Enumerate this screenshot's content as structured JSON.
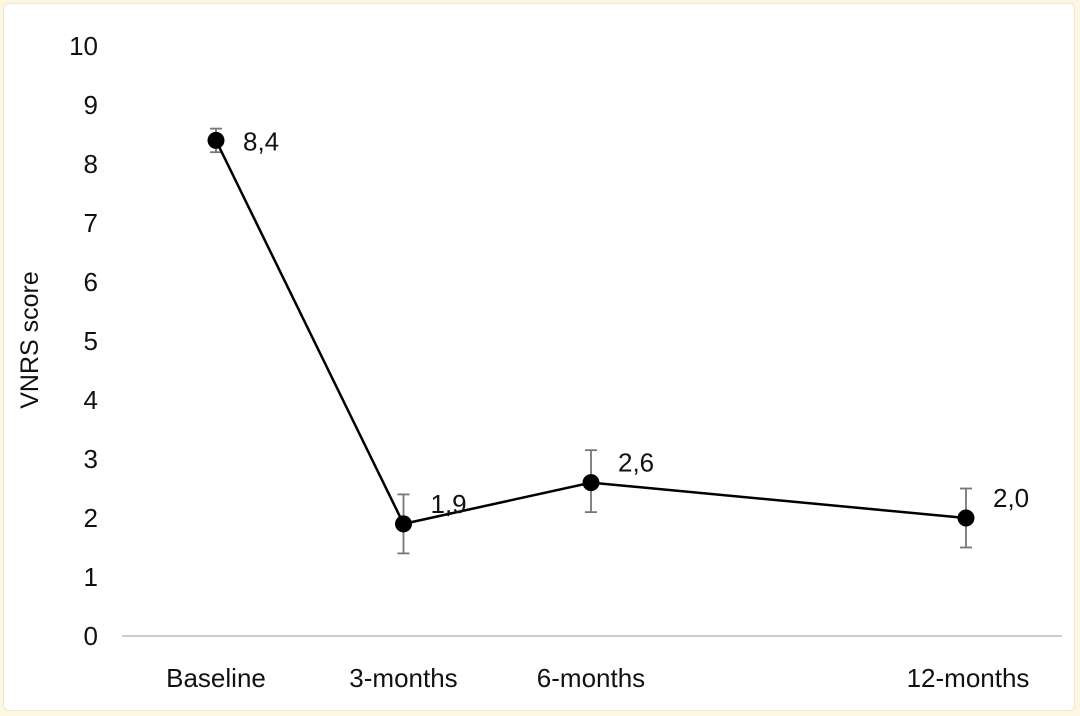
{
  "chart_data": {
    "type": "line",
    "title": "",
    "xlabel": "",
    "ylabel": "VNRS score",
    "ylim": [
      0,
      10
    ],
    "yticks": [
      "0",
      "1",
      "2",
      "3",
      "4",
      "5",
      "6",
      "7",
      "8",
      "9",
      "10"
    ],
    "grid": false,
    "legend": "none",
    "categories": [
      "Baseline",
      "3-months",
      "6-months",
      "12-months"
    ],
    "x_months": [
      0,
      3,
      6,
      12
    ],
    "series": [
      {
        "values": [
          8.4,
          1.9,
          2.6,
          2.0
        ],
        "labels": [
          "8,4",
          "1,9",
          "2,6",
          "2,0"
        ],
        "error_low": [
          8.2,
          1.4,
          2.1,
          1.5
        ],
        "error_high": [
          8.6,
          2.4,
          3.15,
          2.5
        ],
        "color": "#000000"
      }
    ],
    "colors": {
      "line": "#000000",
      "errorbar": "#777777",
      "axis": "#bbbbbb"
    }
  }
}
